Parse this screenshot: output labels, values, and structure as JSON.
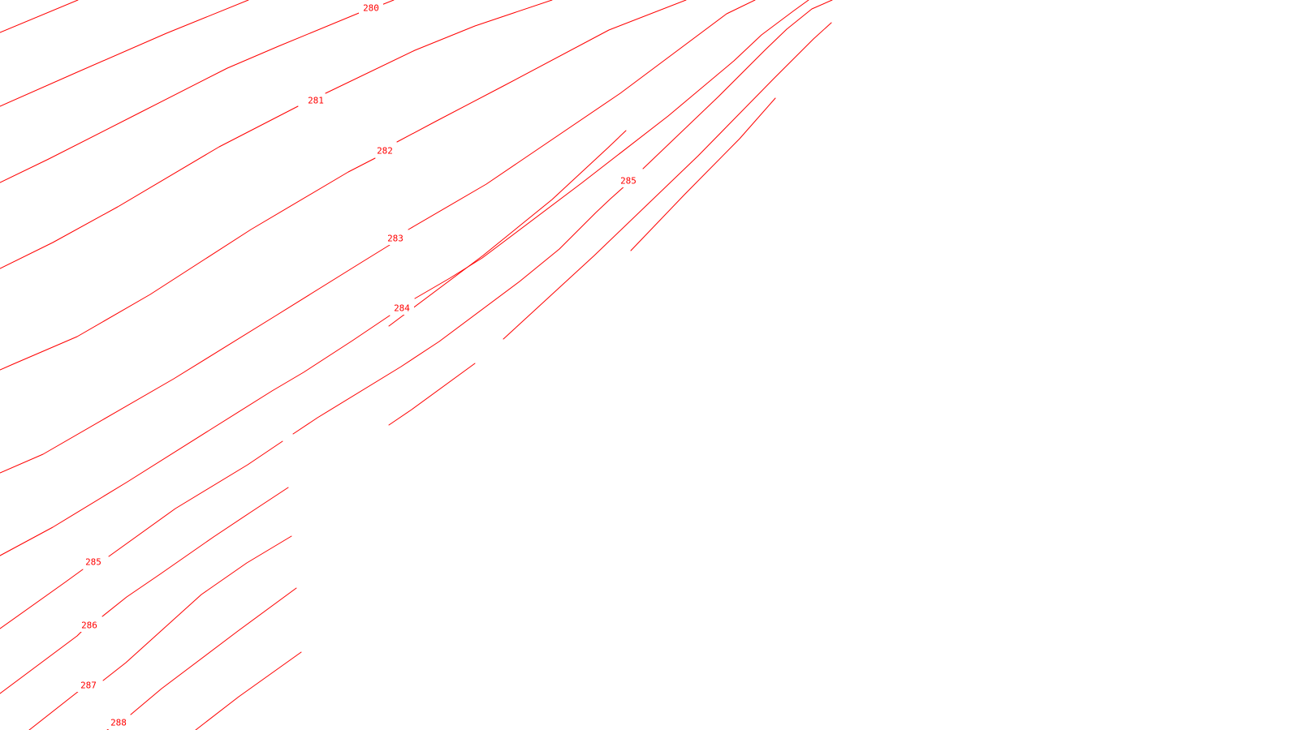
{
  "map": {
    "colors": {
      "contour": "#ff0000",
      "background": "#ffffff"
    },
    "contour_labels": [
      {
        "id": "label-280",
        "text": "280"
      },
      {
        "id": "label-281",
        "text": "281"
      },
      {
        "id": "label-282",
        "text": "282"
      },
      {
        "id": "label-283",
        "text": "283"
      },
      {
        "id": "label-284",
        "text": "284"
      },
      {
        "id": "label-285-east",
        "text": "285"
      },
      {
        "id": "label-285-west",
        "text": "285"
      },
      {
        "id": "label-286",
        "text": "286"
      },
      {
        "id": "label-287",
        "text": "287"
      },
      {
        "id": "label-288",
        "text": "288"
      }
    ]
  }
}
